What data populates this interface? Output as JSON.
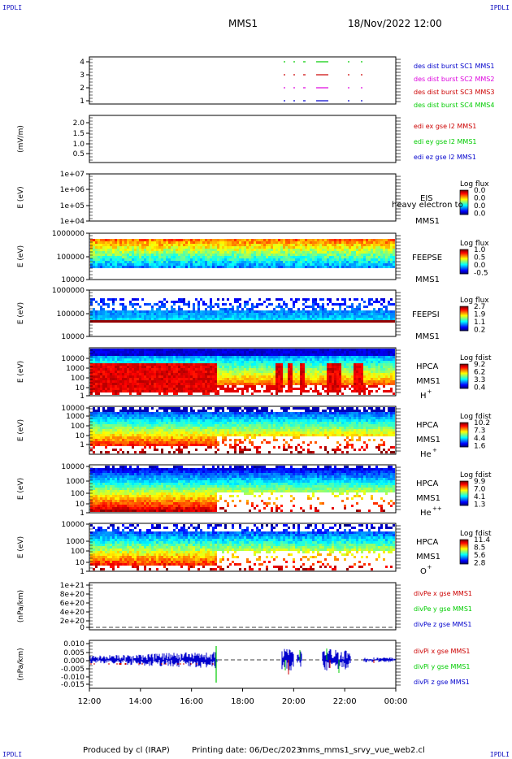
{
  "header": {
    "corner_label": "IPDLI",
    "spacecraft": "MMS1",
    "datetime": "18/Nov/2022 12:00"
  },
  "footer": {
    "produced_by": "Produced by cl (IRAP)",
    "printing_date": "Printing date: 06/Dec/2023",
    "filename": "mms_mms1_srvy_vue_web2.cl"
  },
  "colors": {
    "blue": "#0000cc",
    "magenta": "#dd00dd",
    "red": "#cc0000",
    "green": "#00cc00"
  },
  "chart_data": {
    "type": "heatmap",
    "x_tick_labels": [
      "12:00",
      "14:00",
      "16:00",
      "18:00",
      "20:00",
      "22:00",
      "00:00"
    ],
    "panels": [
      {
        "id": "burst",
        "y_ticks": [
          "4",
          "3",
          "2",
          "1"
        ],
        "legend": [
          {
            "text": "des dist burst SC1 MMS1",
            "color": "#0000cc"
          },
          {
            "text": "des dist burst SC2 MMS2",
            "color": "#dd00dd"
          },
          {
            "text": "des dist burst SC3 MMS3",
            "color": "#cc0000"
          },
          {
            "text": "des dist burst SC4 MMS4",
            "color": "#00cc00"
          }
        ]
      },
      {
        "id": "edi",
        "ylabel": "(mV/m)",
        "y_ticks": [
          "2.0",
          "1.5",
          "1.0",
          "0.5"
        ],
        "legend": [
          {
            "text": "edi ex gse l2 MMS1",
            "color": "#cc0000"
          },
          {
            "text": "edi ey gse l2 MMS1",
            "color": "#00cc00"
          },
          {
            "text": "edi ez gse l2 MMS1",
            "color": "#0000cc"
          }
        ]
      },
      {
        "id": "eis",
        "ylabel": "E (eV)",
        "y_ticks": [
          "1e+07",
          "1e+06",
          "1e+05",
          "1e+04"
        ],
        "instrument": "EIS",
        "instrument_overlap": "heavy electron to",
        "sc": "MMS1",
        "cbar_title": "Log flux",
        "cbar_ticks": [
          "0.0",
          "0.0",
          "0.0",
          "0.0"
        ]
      },
      {
        "id": "feepse",
        "ylabel": "E (eV)",
        "y_ticks": [
          "1000000",
          "100000",
          "10000"
        ],
        "instrument": "FEEPSE",
        "sc": "MMS1",
        "cbar_title": "Log flux",
        "cbar_ticks": [
          "1.0",
          "0.5",
          "0.0",
          "-0.5"
        ]
      },
      {
        "id": "feepsi",
        "ylabel": "E (eV)",
        "y_ticks": [
          "1000000",
          "100000",
          "10000"
        ],
        "instrument": "FEEPSI",
        "sc": "MMS1",
        "cbar_title": "Log flux",
        "cbar_ticks": [
          "2.7",
          "1.9",
          "1.1",
          "0.2"
        ]
      },
      {
        "id": "hpca-h",
        "ylabel": "E (eV)",
        "y_ticks": [
          "10000",
          "1000",
          "100",
          "10",
          "1"
        ],
        "instrument": "HPCA",
        "sc": "MMS1",
        "species": "H",
        "species_sup": "+",
        "cbar_title": "Log fdist",
        "cbar_ticks": [
          "9.2",
          "6.2",
          "3.3",
          "0.4"
        ]
      },
      {
        "id": "hpca-he",
        "ylabel": "E (eV)",
        "y_ticks": [
          "10000",
          "1000",
          "100",
          "10",
          "1"
        ],
        "instrument": "HPCA",
        "sc": "MMS1",
        "species": "He",
        "species_sup": "+",
        "cbar_title": "Log fdist",
        "cbar_ticks": [
          "10.2",
          "7.3",
          "4.4",
          "1.6"
        ]
      },
      {
        "id": "hpca-hepp",
        "ylabel": "E (eV)",
        "y_ticks": [
          "10000",
          "1000",
          "100",
          "10",
          "1"
        ],
        "instrument": "HPCA",
        "sc": "MMS1",
        "species": "He",
        "species_sup": "++",
        "cbar_title": "Log fdist",
        "cbar_ticks": [
          "9.9",
          "7.0",
          "4.1",
          "1.3"
        ]
      },
      {
        "id": "hpca-o",
        "ylabel": "E (eV)",
        "y_ticks": [
          "10000",
          "1000",
          "100",
          "10",
          "1"
        ],
        "instrument": "HPCA",
        "sc": "MMS1",
        "species": "O",
        "species_sup": "+",
        "cbar_title": "Log fdist",
        "cbar_ticks": [
          "11.4",
          "8.5",
          "5.6",
          "2.8"
        ]
      },
      {
        "id": "divpe",
        "ylabel": "(nPa/km)",
        "y_ticks": [
          "1e+21",
          "8e+20",
          "6e+20",
          "4e+20",
          "2e+20",
          "0"
        ],
        "legend": [
          {
            "text": "divPe x gse MMS1",
            "color": "#cc0000"
          },
          {
            "text": "divPe y gse MMS1",
            "color": "#00cc00"
          },
          {
            "text": "divPe z gse MMS1",
            "color": "#0000cc"
          }
        ]
      },
      {
        "id": "divpi",
        "ylabel": "(nPa/km)",
        "y_ticks": [
          "0.010",
          "0.005",
          "0.000",
          "-0.005",
          "-0.010",
          "-0.015"
        ],
        "legend": [
          {
            "text": "divPi x gse MMS1",
            "color": "#cc0000"
          },
          {
            "text": "divPi y gse MMS1",
            "color": "#00cc00"
          },
          {
            "text": "divPi z gse MMS1",
            "color": "#0000cc"
          }
        ]
      }
    ]
  }
}
